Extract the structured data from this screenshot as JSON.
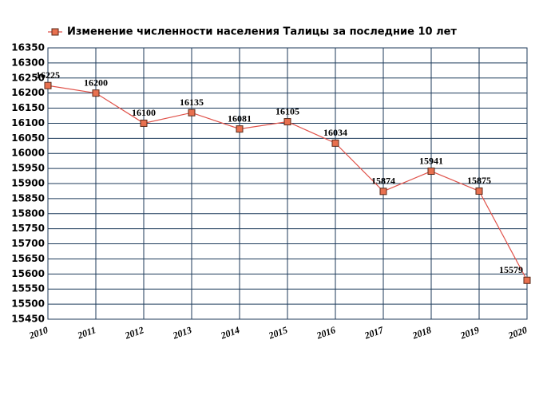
{
  "chart_data": {
    "type": "line",
    "x": [
      2010,
      2011,
      2012,
      2013,
      2014,
      2015,
      2016,
      2017,
      2018,
      2019,
      2020
    ],
    "series": [
      {
        "name": "Изменение численности населения Талицы за последние 10 лет",
        "color": "#e0524a",
        "marker_color": "#e8704f",
        "values": [
          16225,
          16200,
          16100,
          16135,
          16081,
          16105,
          16034,
          15874,
          15941,
          15875,
          15579
        ]
      }
    ],
    "xlim": [
      2010,
      2020
    ],
    "xticks": [
      2010,
      2011,
      2012,
      2013,
      2014,
      2015,
      2016,
      2017,
      2018,
      2019,
      2020
    ],
    "ylim": [
      15450,
      16350
    ],
    "yticks": [
      15450,
      15500,
      15550,
      15600,
      15650,
      15700,
      15750,
      15800,
      15850,
      15900,
      15950,
      16000,
      16050,
      16100,
      16150,
      16200,
      16250,
      16300,
      16350
    ],
    "grid": true,
    "legend": "top"
  }
}
